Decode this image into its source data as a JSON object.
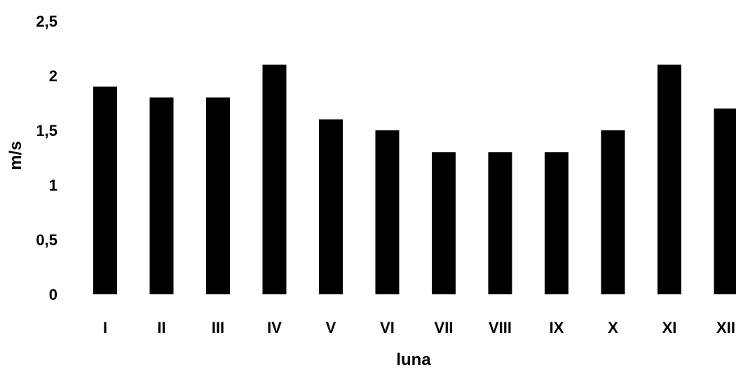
{
  "chart_data": {
    "type": "bar",
    "title": "",
    "xlabel": "luna",
    "ylabel": "m/s",
    "categories": [
      "I",
      "II",
      "III",
      "IV",
      "V",
      "VI",
      "VII",
      "VIII",
      "IX",
      "X",
      "XI",
      "XII"
    ],
    "values": [
      1.9,
      1.8,
      1.8,
      2.1,
      1.6,
      1.5,
      1.3,
      1.3,
      1.3,
      1.5,
      2.1,
      1.7
    ],
    "yticks": [
      "0",
      "0,5",
      "1",
      "1,5",
      "2",
      "2,5"
    ],
    "ylim": [
      0,
      2.5
    ],
    "grid": false,
    "legend": "none",
    "bar_color": "#000000"
  }
}
